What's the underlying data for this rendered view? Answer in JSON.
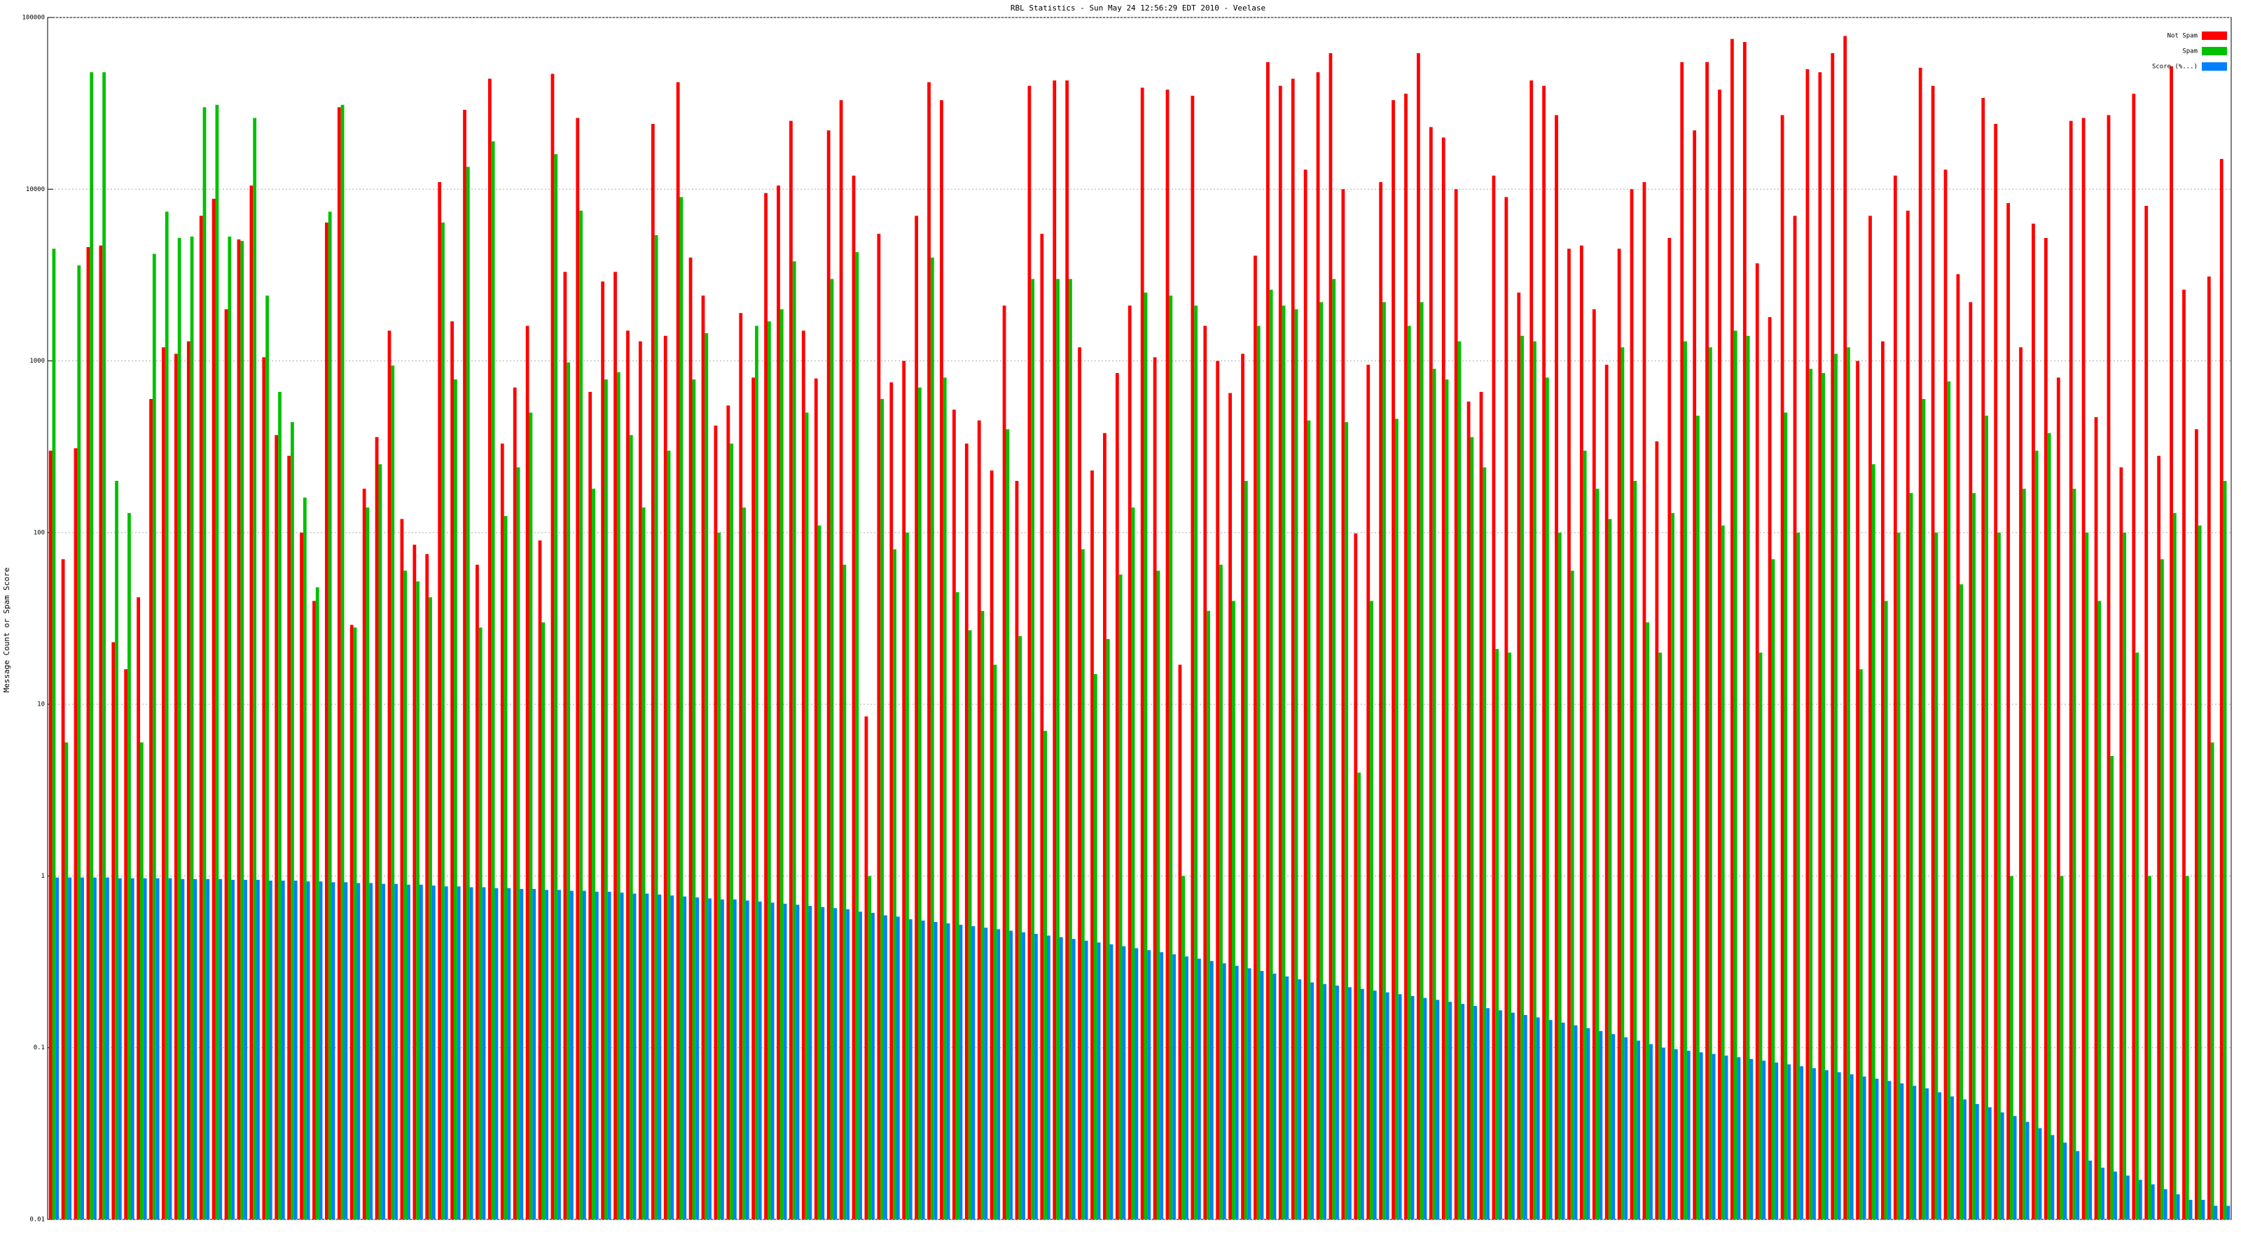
{
  "chart_data": {
    "type": "bar",
    "title": "RBL Statistics - Sun May 24 12:56:29 EDT 2010 - Veelase",
    "y_label": "Message Count or Spam Score",
    "log_scale": true,
    "grid": true,
    "legend": "upper right",
    "ylim": [
      0.01,
      100000
    ],
    "yticks": [
      0.01,
      0.1,
      1,
      10,
      100,
      1000,
      10000,
      100000
    ],
    "categories": [
      null,
      null,
      null,
      null,
      null,
      null,
      null,
      null,
      null,
      null,
      null,
      null,
      null,
      null,
      null,
      null,
      null,
      null,
      null,
      null,
      null,
      null,
      null,
      null,
      null,
      null,
      null,
      null,
      null,
      null,
      null,
      null,
      null,
      null,
      null,
      null,
      null,
      null,
      null,
      null,
      null,
      null,
      null,
      null,
      null,
      null,
      null,
      null,
      null,
      null,
      null,
      null,
      null,
      null,
      null,
      null,
      null,
      null,
      null,
      null,
      null,
      null,
      null,
      null,
      null,
      null,
      null,
      null,
      null,
      null,
      null,
      null,
      null,
      null,
      null,
      null,
      null,
      null,
      null,
      null,
      null,
      null,
      null,
      null,
      null,
      null,
      null,
      null,
      null,
      null,
      null,
      null,
      null,
      null,
      null,
      null,
      null,
      null,
      null,
      null,
      null,
      null,
      null,
      null,
      null,
      null,
      null,
      null,
      null,
      null,
      null,
      null,
      null,
      null,
      null,
      null,
      null,
      null,
      null,
      null,
      null,
      null,
      null,
      null,
      null,
      null,
      null,
      null,
      null,
      null,
      null,
      null,
      null,
      null,
      null,
      null,
      null,
      null,
      null,
      null,
      null,
      null,
      null,
      null,
      null,
      null,
      null,
      null,
      null,
      null,
      null,
      null,
      null,
      null,
      null,
      null,
      null,
      null,
      null,
      null,
      null,
      null,
      null,
      null,
      null,
      null,
      null,
      null,
      null,
      null,
      null,
      null,
      null,
      null
    ],
    "series": [
      {
        "name": "Not Spam",
        "color": "#ff0000",
        "values": [
          300,
          70,
          310,
          4600,
          4700,
          23,
          16,
          42,
          600,
          1200,
          1100,
          1300,
          7000,
          8800,
          2000,
          5100,
          10500,
          1050,
          370,
          280,
          100,
          40,
          6400,
          30000,
          29,
          180,
          360,
          1500,
          120,
          85,
          75,
          11000,
          1700,
          29000,
          65,
          44000,
          330,
          700,
          1600,
          90,
          47000,
          3300,
          26000,
          660,
          2900,
          3300,
          1500,
          1300,
          24000,
          1400,
          42000,
          4000,
          2400,
          420,
          550,
          1900,
          800,
          9500,
          10500,
          25000,
          1500,
          790,
          22000,
          33000,
          12000,
          8.5,
          5500,
          750,
          1000,
          7000,
          42000,
          33000,
          520,
          330,
          450,
          230,
          2100,
          200,
          40000,
          5500,
          43000,
          43000,
          1200,
          230,
          380,
          850,
          2100,
          39000,
          1050,
          38000,
          17,
          35000,
          1600,
          1000,
          650,
          1100,
          4100,
          55000,
          40000,
          44000,
          13000,
          48000,
          62000,
          10000,
          99,
          950,
          11000,
          33000,
          36000,
          62000,
          23000,
          20000,
          10000,
          580,
          660,
          12000,
          9000,
          2500,
          43000,
          40000,
          27000,
          4500,
          4700,
          2000,
          950,
          4500,
          10000,
          11000,
          340,
          5200,
          55000,
          22000,
          55000,
          38000,
          75000,
          72000,
          3700,
          1800,
          27000,
          7000,
          50000,
          48000,
          62000,
          78000,
          1000,
          7000,
          1300,
          12000,
          7500,
          51000,
          40000,
          13000,
          3200,
          2200,
          34000,
          24000,
          8300,
          1200,
          6300,
          5200,
          800,
          25000,
          26000,
          470,
          27000,
          240,
          36000,
          8000,
          280,
          52000,
          2600,
          400,
          3100,
          15000
        ]
      },
      {
        "name": "Spam",
        "color": "#00c000",
        "values": [
          4500,
          6,
          3600,
          48000,
          48000,
          200,
          130,
          6,
          4200,
          7400,
          5200,
          5300,
          30000,
          31000,
          5300,
          5000,
          26000,
          2400,
          660,
          440,
          160,
          48,
          7400,
          31000,
          28,
          140,
          250,
          940,
          60,
          52,
          42,
          6400,
          780,
          13500,
          28,
          19000,
          125,
          240,
          500,
          30,
          16000,
          980,
          7500,
          180,
          780,
          860,
          370,
          140,
          5400,
          300,
          9000,
          780,
          1450,
          100,
          330,
          140,
          1600,
          1700,
          2000,
          3800,
          500,
          110,
          3000,
          65,
          4300,
          1.0,
          600,
          80,
          100,
          700,
          4000,
          800,
          45,
          27,
          35,
          17,
          400,
          25,
          3000,
          7,
          3000,
          3000,
          80,
          15,
          24,
          57,
          140,
          2500,
          60,
          2400,
          1.0,
          2100,
          35,
          65,
          40,
          200,
          1600,
          2600,
          2100,
          2000,
          450,
          2200,
          3000,
          440,
          4,
          40,
          2200,
          460,
          1600,
          2200,
          900,
          780,
          1300,
          360,
          240,
          21,
          20,
          1400,
          1300,
          800,
          100,
          60,
          300,
          180,
          120,
          1200,
          200,
          30,
          20,
          130,
          1300,
          480,
          1200,
          110,
          1500,
          1400,
          20,
          70,
          500,
          100,
          900,
          850,
          1100,
          1200,
          16,
          250,
          40,
          100,
          170,
          600,
          100,
          760,
          50,
          170,
          480,
          100,
          1.0,
          180,
          300,
          380,
          1.0,
          180,
          100,
          40,
          5,
          100,
          20,
          1.0,
          70,
          130,
          1.0,
          110,
          6,
          200
        ]
      },
      {
        "name": "Score (%...)",
        "color": "#0080ff",
        "values": [
          0.98,
          0.98,
          0.98,
          0.98,
          0.98,
          0.97,
          0.97,
          0.97,
          0.97,
          0.97,
          0.96,
          0.96,
          0.96,
          0.96,
          0.95,
          0.95,
          0.95,
          0.94,
          0.94,
          0.94,
          0.93,
          0.93,
          0.92,
          0.92,
          0.91,
          0.91,
          0.9,
          0.9,
          0.89,
          0.89,
          0.88,
          0.87,
          0.87,
          0.86,
          0.86,
          0.85,
          0.85,
          0.84,
          0.84,
          0.83,
          0.83,
          0.82,
          0.82,
          0.81,
          0.81,
          0.8,
          0.79,
          0.79,
          0.78,
          0.77,
          0.76,
          0.75,
          0.74,
          0.73,
          0.73,
          0.72,
          0.71,
          0.7,
          0.69,
          0.68,
          0.67,
          0.66,
          0.65,
          0.64,
          0.62,
          0.61,
          0.59,
          0.58,
          0.56,
          0.55,
          0.54,
          0.53,
          0.52,
          0.51,
          0.5,
          0.49,
          0.48,
          0.47,
          0.46,
          0.45,
          0.44,
          0.43,
          0.42,
          0.41,
          0.4,
          0.39,
          0.38,
          0.37,
          0.36,
          0.35,
          0.34,
          0.33,
          0.32,
          0.31,
          0.3,
          0.29,
          0.28,
          0.27,
          0.26,
          0.25,
          0.24,
          0.235,
          0.23,
          0.225,
          0.22,
          0.215,
          0.21,
          0.205,
          0.2,
          0.195,
          0.19,
          0.185,
          0.18,
          0.175,
          0.17,
          0.165,
          0.16,
          0.155,
          0.15,
          0.145,
          0.14,
          0.135,
          0.13,
          0.125,
          0.12,
          0.115,
          0.11,
          0.105,
          0.1,
          0.098,
          0.096,
          0.094,
          0.092,
          0.09,
          0.088,
          0.086,
          0.084,
          0.082,
          0.08,
          0.078,
          0.076,
          0.074,
          0.072,
          0.07,
          0.068,
          0.066,
          0.064,
          0.062,
          0.06,
          0.058,
          0.055,
          0.052,
          0.05,
          0.047,
          0.045,
          0.042,
          0.04,
          0.037,
          0.034,
          0.031,
          0.028,
          0.025,
          0.022,
          0.02,
          0.019,
          0.018,
          0.017,
          0.016,
          0.015,
          0.014,
          0.013,
          0.013,
          0.012,
          0.012
        ]
      }
    ]
  }
}
